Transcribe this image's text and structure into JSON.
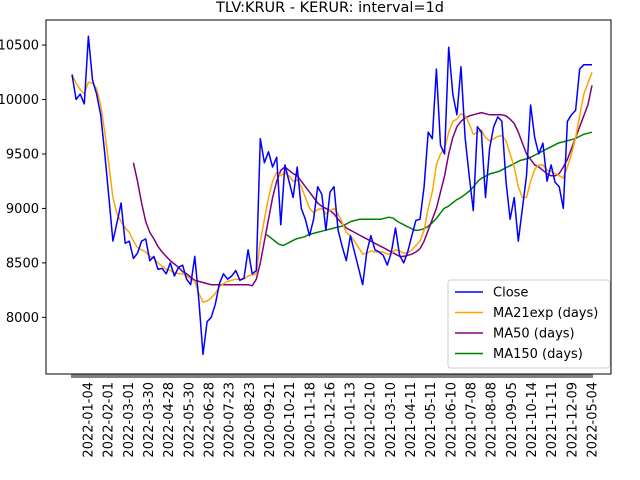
{
  "chart_data": {
    "type": "line",
    "title": "TLV:KRUR - KERUR: interval=1d",
    "xlabel": "",
    "ylabel": "",
    "ylim": [
      7480,
      10730
    ],
    "yticks": [
      8000,
      8500,
      9000,
      9500,
      10000,
      10500
    ],
    "ytick_labels": [
      "8000",
      "8500",
      "9000",
      "9500",
      "10000",
      "10500"
    ],
    "xtick_labels": [
      "2022-01-04",
      "2022-02-01",
      "2022-03-01",
      "2022-03-30",
      "2022-04-28",
      "2022-05-30",
      "2022-06-28",
      "2020-07-23",
      "2020-08-23",
      "2020-09-21",
      "2020-10-21",
      "2020-11-18",
      "2020-12-16",
      "2021-01-13",
      "2021-02-10",
      "2021-03-10",
      "2021-04-11",
      "2021-05-11",
      "2021-06-10",
      "2021-07-08",
      "2021-08-08",
      "2021-09-05",
      "2021-10-14",
      "2021-11-11",
      "2021-12-09",
      "2022-05-04"
    ],
    "grid": false,
    "legend_position": "lower-right",
    "series": [
      {
        "name": "Close",
        "color": "#0000ff",
        "values": [
          10230,
          10000,
          10050,
          9960,
          10580,
          10180,
          10050,
          9860,
          9500,
          9100,
          8700,
          8870,
          9050,
          8680,
          8700,
          8540,
          8590,
          8700,
          8720,
          8520,
          8560,
          8440,
          8450,
          8400,
          8500,
          8380,
          8460,
          8480,
          8350,
          8300,
          8560,
          8150,
          7660,
          7960,
          8000,
          8120,
          8310,
          8400,
          8350,
          8380,
          8430,
          8340,
          8360,
          8620,
          8400,
          8430,
          9640,
          9420,
          9520,
          9380,
          9470,
          8850,
          9400,
          9250,
          9100,
          9380,
          9000,
          8900,
          8750,
          8900,
          9200,
          9130,
          8800,
          9150,
          9200,
          8800,
          8650,
          8520,
          8750,
          8600,
          8450,
          8300,
          8600,
          8750,
          8620,
          8600,
          8570,
          8480,
          8600,
          8820,
          8570,
          8500,
          8600,
          8750,
          8890,
          8900,
          9200,
          9700,
          9640,
          10280,
          9580,
          9500,
          10480,
          10050,
          9860,
          10300,
          9650,
          9300,
          8980,
          9750,
          9700,
          9100,
          9550,
          9750,
          9840,
          9800,
          9250,
          8900,
          9100,
          8700,
          9000,
          9300,
          9950,
          9650,
          9500,
          9600,
          9250,
          9400,
          9240,
          9200,
          9000,
          9800,
          9860,
          9900,
          10280,
          10320,
          10320,
          10320
        ],
        "visible_range": "full"
      },
      {
        "name": "MA21exp (days)",
        "color": "#ffa500",
        "values": [
          10230,
          10150,
          10090,
          10050,
          10160,
          10150,
          10100,
          9950,
          9700,
          9400,
          9100,
          8950,
          8880,
          8820,
          8780,
          8700,
          8640,
          8620,
          8600,
          8560,
          8540,
          8500,
          8470,
          8440,
          8430,
          8410,
          8400,
          8400,
          8380,
          8350,
          8330,
          8220,
          8140,
          8150,
          8180,
          8220,
          8280,
          8310,
          8330,
          8340,
          8350,
          8350,
          8350,
          8380,
          8390,
          8400,
          8700,
          8900,
          9100,
          9250,
          9330,
          9300,
          9330,
          9300,
          9250,
          9260,
          9200,
          9100,
          9000,
          8960,
          8990,
          9000,
          8950,
          8980,
          9000,
          8950,
          8870,
          8780,
          8750,
          8700,
          8640,
          8580,
          8590,
          8610,
          8600,
          8600,
          8600,
          8580,
          8590,
          8620,
          8610,
          8590,
          8590,
          8620,
          8660,
          8700,
          8800,
          9000,
          9150,
          9400,
          9500,
          9550,
          9700,
          9800,
          9820,
          9870,
          9850,
          9780,
          9680,
          9700,
          9720,
          9650,
          9620,
          9640,
          9660,
          9670,
          9620,
          9500,
          9380,
          9200,
          9100,
          9100,
          9250,
          9360,
          9400,
          9400,
          9350,
          9340,
          9320,
          9300,
          9280,
          9380,
          9500,
          9650,
          9850,
          10050,
          10150,
          10250
        ],
        "visible_range": "full"
      },
      {
        "name": "MA50 (days)",
        "color": "#800080",
        "values": [
          null,
          null,
          null,
          null,
          null,
          null,
          null,
          null,
          null,
          null,
          null,
          null,
          null,
          null,
          null,
          9420,
          9250,
          9050,
          8880,
          8780,
          8720,
          8650,
          8600,
          8560,
          8520,
          8490,
          8460,
          8420,
          8400,
          8370,
          8340,
          8330,
          8320,
          8310,
          8300,
          8300,
          8300,
          8300,
          8300,
          8300,
          8300,
          8300,
          8300,
          8300,
          8290,
          8350,
          8500,
          8700,
          8900,
          9100,
          9250,
          9350,
          9380,
          9350,
          9320,
          9300,
          9250,
          9200,
          9150,
          9100,
          9050,
          9020,
          9000,
          8980,
          8950,
          8900,
          8860,
          8820,
          8800,
          8780,
          8760,
          8740,
          8720,
          8700,
          8680,
          8660,
          8640,
          8620,
          8600,
          8580,
          8560,
          8560,
          8570,
          8580,
          8600,
          8630,
          8700,
          8800,
          8900,
          9000,
          9150,
          9300,
          9500,
          9650,
          9750,
          9800,
          9830,
          9850,
          9860,
          9870,
          9880,
          9870,
          9860,
          9860,
          9860,
          9860,
          9850,
          9820,
          9780,
          9700,
          9600,
          9500,
          9450,
          9400,
          9380,
          9350,
          9320,
          9300,
          9300,
          9320,
          9380,
          9450,
          9550,
          9650,
          9750,
          9850,
          9950,
          10130
        ],
        "visible_range": "full"
      },
      {
        "name": "MA150 (days)",
        "color": "#008000",
        "values": [
          null,
          null,
          null,
          null,
          null,
          null,
          null,
          null,
          null,
          null,
          null,
          null,
          null,
          null,
          null,
          null,
          null,
          null,
          null,
          null,
          null,
          null,
          null,
          null,
          null,
          null,
          null,
          null,
          null,
          null,
          null,
          null,
          null,
          null,
          null,
          null,
          null,
          null,
          null,
          null,
          null,
          null,
          null,
          null,
          null,
          null,
          8760,
          8730,
          8700,
          8670,
          8660,
          8680,
          8700,
          8720,
          8730,
          8740,
          8760,
          8770,
          8780,
          8790,
          8800,
          8810,
          8820,
          8830,
          8840,
          8860,
          8880,
          8890,
          8900,
          8900,
          8900,
          8900,
          8900,
          8900,
          8910,
          8920,
          8910,
          8880,
          8860,
          8840,
          8820,
          8800,
          8800,
          8810,
          8830,
          8860,
          8900,
          8950,
          9000,
          9020,
          9050,
          9080,
          9100,
          9130,
          9160,
          9200,
          9250,
          9280,
          9300,
          9320,
          9330,
          9340,
          9360,
          9380,
          9400,
          9420,
          9440,
          9450,
          9460,
          9480,
          9500,
          9520,
          9540,
          9560,
          9580,
          9600,
          9610,
          9620,
          9630,
          9640,
          9660,
          9680,
          9690,
          9700
        ],
        "visible_range": "full"
      }
    ]
  }
}
